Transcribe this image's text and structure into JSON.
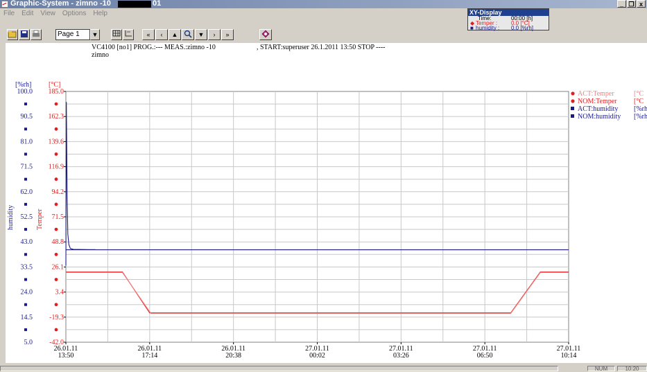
{
  "window": {
    "title": "Graphic-System - zimno -10",
    "title_suffix": "01"
  },
  "menu": [
    "File",
    "Edit",
    "View",
    "Options",
    "Help"
  ],
  "toolbar": {
    "page_label": "Page 1"
  },
  "xy_display": {
    "title": "XY-Display",
    "rows": [
      {
        "label": "Time:",
        "value": "00:00 [h]"
      },
      {
        "label": "Temper   :",
        "value": "0.0  [°C]"
      },
      {
        "label": "humidity :",
        "value": "0.0 [%rh]"
      }
    ]
  },
  "chart_header": {
    "line1": "VC4100 [no1] PROG.:--- MEAS.:zimno -10",
    "start": ", START:superuser 26.1.2011  13:50 STOP ----",
    "line2": "zimno"
  },
  "axes": {
    "left_unit": "[%rh]",
    "right_unit": "[°C]",
    "left_title": "humidity",
    "right_title": "Temper",
    "humidity_ticks": [
      "100.0",
      "90.5",
      "81.0",
      "71.5",
      "62.0",
      "52.5",
      "43.0",
      "33.5",
      "24.0",
      "14.5",
      "5.0"
    ],
    "temper_ticks": [
      "185.0",
      "162.3",
      "139.6",
      "116.9",
      "94.2",
      "71.5",
      "48.8",
      "26.1",
      "3.4",
      "-19.3",
      "-42.0"
    ],
    "x_ticks": [
      {
        "date": "26.01.11",
        "time": "13:50"
      },
      {
        "date": "26.01.11",
        "time": "17:14"
      },
      {
        "date": "26.01.11",
        "time": "20:38"
      },
      {
        "date": "27.01.11",
        "time": "00:02"
      },
      {
        "date": "27.01.11",
        "time": "03:26"
      },
      {
        "date": "27.01.11",
        "time": "06:50"
      },
      {
        "date": "27.01.11",
        "time": "10:14"
      }
    ]
  },
  "legend": [
    {
      "label": "ACT:Temper",
      "unit": "[°C",
      "color": "#e02020",
      "marker": "circle",
      "faded": true
    },
    {
      "label": "NOM:Temper",
      "unit": "[°C",
      "color": "#e02020",
      "marker": "circle",
      "faded": false
    },
    {
      "label": "ACT:humidity",
      "unit": "[%rh",
      "color": "#1a1a8c",
      "marker": "square",
      "faded": false
    },
    {
      "label": "NOM:humidity",
      "unit": "[%rh",
      "color": "#1a1a8c",
      "marker": "square",
      "faded": false
    }
  ],
  "status": {
    "num": "NUM",
    "time": "10:20"
  },
  "chart_data": {
    "type": "line",
    "x_unit": "hours since start",
    "xlim": [
      0,
      20.4
    ],
    "series": [
      {
        "name": "NOM:Temper",
        "axis": "temper",
        "color": "#e02020",
        "x": [
          0,
          2.3,
          3.4,
          18.05,
          19.25,
          20.4
        ],
        "y": [
          21.5,
          21.5,
          -15.5,
          -15.5,
          21.5,
          21.5
        ]
      },
      {
        "name": "ACT:Temper",
        "axis": "temper",
        "color": "#f08080",
        "x": [
          0,
          2.3,
          3.45,
          18.05,
          19.25,
          20.4
        ],
        "y": [
          21.0,
          21.0,
          -16.0,
          -16.0,
          21.0,
          21.0
        ]
      },
      {
        "name": "ACT:humidity",
        "axis": "humidity",
        "color": "#1a1a8c",
        "x": [
          0,
          0.02,
          0.05,
          0.08,
          0.12,
          0.18,
          0.3,
          1.0,
          1.2
        ],
        "y": [
          34,
          96,
          60,
          46,
          42,
          40.5,
          40.2,
          40.1,
          40.1
        ]
      },
      {
        "name": "NOM:humidity",
        "axis": "humidity",
        "color": "#1a1a8c",
        "x": [
          0,
          20.4
        ],
        "y": [
          40.0,
          40.0
        ]
      }
    ],
    "humidity_range": [
      5.0,
      100.0
    ],
    "temper_range": [
      -42.0,
      185.0
    ],
    "grid": true
  }
}
